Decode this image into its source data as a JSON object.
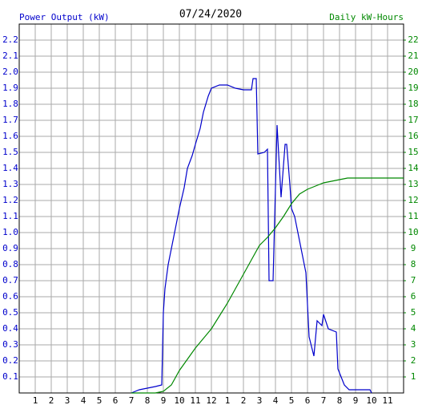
{
  "chart_data": {
    "type": "line",
    "title": "07/24/2020",
    "y_label": "Power Output (kW)",
    "y2_label": "Daily kW-Hours",
    "xlim": [
      0,
      24
    ],
    "ylim": [
      0,
      2.3
    ],
    "y2lim": [
      0,
      23
    ],
    "grid": true,
    "xticks": [
      1,
      2,
      3,
      4,
      5,
      6,
      7,
      8,
      9,
      10,
      11,
      12,
      {
        "value": 13,
        "label": "1"
      },
      {
        "value": 14,
        "label": "2"
      },
      {
        "value": 15,
        "label": "3"
      },
      {
        "value": 16,
        "label": "4"
      },
      {
        "value": 17,
        "label": "5"
      },
      {
        "value": 18,
        "label": "6"
      },
      {
        "value": 19,
        "label": "7"
      },
      {
        "value": 20,
        "label": "8"
      },
      {
        "value": 21,
        "label": "9"
      },
      {
        "value": 22,
        "label": "10"
      },
      {
        "value": 23,
        "label": "11"
      }
    ],
    "yticks": [
      0.1,
      0.2,
      0.3,
      0.4,
      0.5,
      0.6,
      0.7,
      0.8,
      0.9,
      {
        "value": 1,
        "label": "1.0"
      },
      1.1,
      1.2,
      1.3,
      1.4,
      1.5,
      1.6,
      1.7,
      1.8,
      1.9,
      {
        "value": 2,
        "label": "2.0"
      },
      2.1,
      2.2
    ],
    "y2ticks": [
      1,
      2,
      3,
      4,
      5,
      6,
      7,
      8,
      9,
      10,
      11,
      12,
      13,
      14,
      15,
      16,
      17,
      18,
      19,
      20,
      21,
      22
    ],
    "series": [
      {
        "name": "Power Output (kW)",
        "color": "#0000cc",
        "axis": "y",
        "x": [
          7,
          7.5,
          8,
          8.5,
          8.9,
          9,
          9.1,
          9.3,
          9.5,
          9.8,
          10,
          10.3,
          10.5,
          10.8,
          11,
          11.3,
          11.5,
          11.8,
          12,
          12.5,
          13,
          13.5,
          14,
          14.5,
          14.6,
          14.8,
          14.9,
          15.3,
          15.5,
          15.6,
          15.85,
          16.1,
          16.35,
          16.6,
          16.7,
          16.9,
          17,
          17.2,
          17.4,
          17.6,
          17.9,
          18.1,
          18.4,
          18.6,
          18.9,
          19,
          19.3,
          19.8,
          19.9,
          20.1,
          20.3,
          20.6,
          21.9,
          22
        ],
        "values": [
          0,
          0.02,
          0.03,
          0.04,
          0.05,
          0.5,
          0.65,
          0.8,
          0.9,
          1.05,
          1.15,
          1.28,
          1.4,
          1.48,
          1.55,
          1.65,
          1.75,
          1.85,
          1.9,
          1.92,
          1.92,
          1.9,
          1.89,
          1.89,
          1.96,
          1.96,
          1.49,
          1.5,
          1.52,
          0.7,
          0.7,
          1.67,
          1.22,
          1.55,
          1.55,
          1.3,
          1.15,
          1.1,
          1.0,
          0.9,
          0.75,
          0.35,
          0.23,
          0.45,
          0.42,
          0.49,
          0.4,
          0.38,
          0.15,
          0.1,
          0.05,
          0.02,
          0.02,
          0
        ]
      },
      {
        "name": "Daily kW-Hours",
        "color": "#008800",
        "axis": "y2",
        "x": [
          7,
          8.5,
          9,
          9.5,
          10,
          10.5,
          11,
          11.5,
          12,
          12.5,
          13,
          13.5,
          14,
          14.5,
          15,
          15.5,
          16,
          16.5,
          17,
          17.5,
          18,
          18.5,
          19,
          19.5,
          20,
          20.5,
          24
        ],
        "values": [
          0,
          0,
          0.1,
          0.5,
          1.4,
          2.1,
          2.8,
          3.4,
          4.0,
          4.8,
          5.6,
          6.5,
          7.4,
          8.3,
          9.2,
          9.7,
          10.3,
          11.0,
          11.8,
          12.4,
          12.7,
          12.9,
          13.1,
          13.2,
          13.3,
          13.4,
          13.4
        ]
      }
    ]
  }
}
